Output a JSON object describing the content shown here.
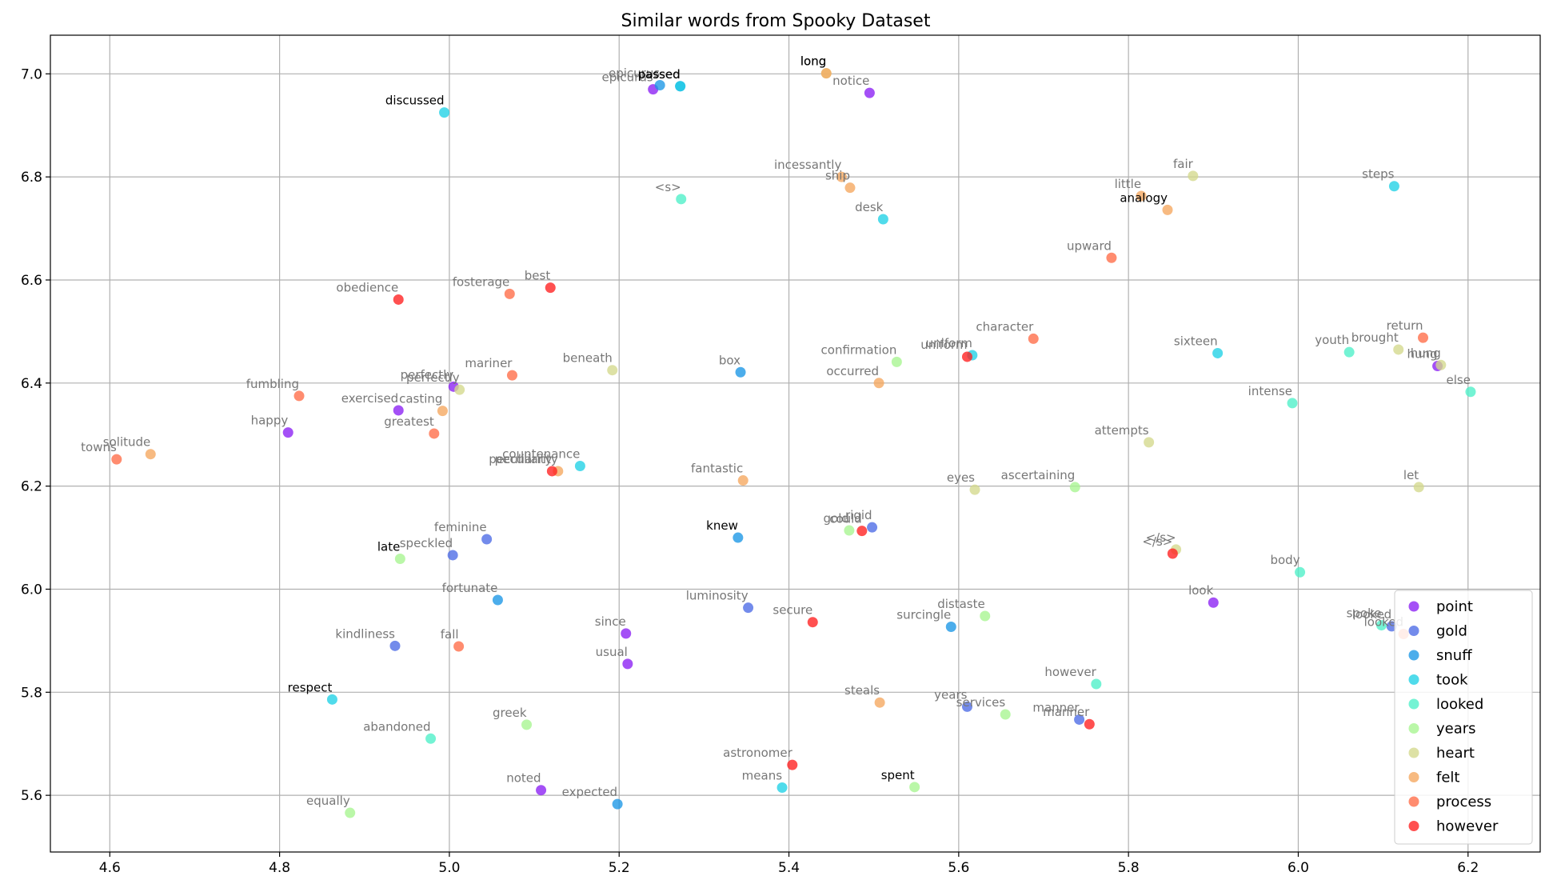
{
  "chart_data": {
    "type": "scatter",
    "title": "Similar words from Spooky Dataset",
    "xlabel": "",
    "ylabel": "",
    "xlim": [
      4.53,
      6.285
    ],
    "ylim": [
      5.49,
      7.075
    ],
    "x_ticks": [
      "4.6",
      "4.8",
      "5.0",
      "5.2",
      "5.4",
      "5.6",
      "5.8",
      "6.0",
      "6.2"
    ],
    "y_ticks": [
      "5.6",
      "5.8",
      "6.0",
      "6.2",
      "6.4",
      "6.6",
      "6.8",
      "7.0"
    ],
    "grid": true,
    "legend_position": "lower right",
    "series": [
      {
        "name": "point",
        "color": "#8b1ff3",
        "points": [
          {
            "label": "epicurus",
            "x": 5.24,
            "y": 6.97,
            "label_color": "#777777"
          },
          {
            "label": "notice",
            "x": 5.495,
            "y": 6.963,
            "label_color": "#777777"
          },
          {
            "label": "perfectly",
            "x": 5.005,
            "y": 6.393,
            "label_color": "#777777"
          },
          {
            "label": "exercised",
            "x": 4.94,
            "y": 6.347,
            "label_color": "#777777"
          },
          {
            "label": "happy",
            "x": 4.81,
            "y": 6.304,
            "label_color": "#777777"
          },
          {
            "label": "since",
            "x": 5.208,
            "y": 5.914,
            "label_color": "#777777"
          },
          {
            "label": "usual",
            "x": 5.21,
            "y": 5.855,
            "label_color": "#777777"
          },
          {
            "label": "noted",
            "x": 5.108,
            "y": 5.61,
            "label_color": "#777777"
          },
          {
            "label": "look",
            "x": 5.9,
            "y": 5.974,
            "label_color": "#777777"
          },
          {
            "label": "hung",
            "x": 6.164,
            "y": 6.433,
            "label_color": "#777777"
          }
        ]
      },
      {
        "name": "gold",
        "color": "#4b6ae6",
        "points": [
          {
            "label": "feminine",
            "x": 5.044,
            "y": 6.097,
            "label_color": "#777777"
          },
          {
            "label": "speckled",
            "x": 5.004,
            "y": 6.066,
            "label_color": "#777777"
          },
          {
            "label": "kindliness",
            "x": 4.936,
            "y": 5.89,
            "label_color": "#777777"
          },
          {
            "label": "luminosity",
            "x": 5.352,
            "y": 5.964,
            "label_color": "#777777"
          },
          {
            "label": "rigid",
            "x": 5.498,
            "y": 6.12,
            "label_color": "#777777"
          },
          {
            "label": "years",
            "x": 5.61,
            "y": 5.772,
            "label_color": "#777777"
          },
          {
            "label": "manner",
            "x": 5.742,
            "y": 5.747,
            "label_color": "#777777"
          },
          {
            "label": "looked",
            "x": 6.11,
            "y": 5.928,
            "label_color": "#777777"
          }
        ]
      },
      {
        "name": "snuff",
        "color": "#1996e6",
        "points": [
          {
            "label": "epicurus",
            "x": 5.248,
            "y": 6.978,
            "label_color": "#777777"
          },
          {
            "label": "passed",
            "x": 5.272,
            "y": 6.976,
            "label_color": "#000000"
          },
          {
            "label": "box",
            "x": 5.343,
            "y": 6.421,
            "label_color": "#777777"
          },
          {
            "label": "knew",
            "x": 5.34,
            "y": 6.1,
            "label_color": "#000000"
          },
          {
            "label": "fortunate",
            "x": 5.057,
            "y": 5.979,
            "label_color": "#777777"
          },
          {
            "label": "expected",
            "x": 5.198,
            "y": 5.583,
            "label_color": "#777777"
          },
          {
            "label": "surcingle",
            "x": 5.591,
            "y": 5.927,
            "label_color": "#777777"
          }
        ]
      },
      {
        "name": "took",
        "color": "#1fd1e6",
        "points": [
          {
            "label": "discussed",
            "x": 4.994,
            "y": 6.925,
            "label_color": "#000000"
          },
          {
            "label": "passed",
            "x": 5.272,
            "y": 6.976,
            "label_color": "#000000"
          },
          {
            "label": "desk",
            "x": 5.511,
            "y": 6.718,
            "label_color": "#777777"
          },
          {
            "label": "countenance",
            "x": 5.154,
            "y": 6.239,
            "label_color": "#777777"
          },
          {
            "label": "uniform",
            "x": 5.616,
            "y": 6.454,
            "label_color": "#777777"
          },
          {
            "label": "steps",
            "x": 6.113,
            "y": 6.782,
            "label_color": "#777777"
          },
          {
            "label": "sixteen",
            "x": 5.905,
            "y": 6.458,
            "label_color": "#777777"
          },
          {
            "label": "respect",
            "x": 4.862,
            "y": 5.786,
            "label_color": "#000000"
          },
          {
            "label": "means",
            "x": 5.392,
            "y": 5.615,
            "label_color": "#777777"
          }
        ]
      },
      {
        "name": "looked",
        "color": "#4df0c8",
        "points": [
          {
            "label": "<s>",
            "x": 5.273,
            "y": 6.757,
            "label_color": "#777777"
          },
          {
            "label": "youth",
            "x": 6.06,
            "y": 6.46,
            "label_color": "#777777"
          },
          {
            "label": "intense",
            "x": 5.993,
            "y": 6.361,
            "label_color": "#777777"
          },
          {
            "label": "else",
            "x": 6.203,
            "y": 6.383,
            "label_color": "#777777"
          },
          {
            "label": "body",
            "x": 6.002,
            "y": 6.033,
            "label_color": "#777777"
          },
          {
            "label": "abandoned",
            "x": 4.978,
            "y": 5.71,
            "label_color": "#777777"
          },
          {
            "label": "however",
            "x": 5.762,
            "y": 5.816,
            "label_color": "#777777"
          },
          {
            "label": "spoke",
            "x": 6.098,
            "y": 5.93,
            "label_color": "#777777"
          }
        ]
      },
      {
        "name": "years",
        "color": "#a6f590",
        "points": [
          {
            "label": "confirmation",
            "x": 5.527,
            "y": 6.441,
            "label_color": "#777777"
          },
          {
            "label": "late",
            "x": 4.942,
            "y": 6.059,
            "label_color": "#000000"
          },
          {
            "label": "gold",
            "x": 5.471,
            "y": 6.114,
            "label_color": "#777777"
          },
          {
            "label": "ascertaining",
            "x": 5.737,
            "y": 6.198,
            "label_color": "#777777"
          },
          {
            "label": "distaste",
            "x": 5.631,
            "y": 5.948,
            "label_color": "#777777"
          },
          {
            "label": "greek",
            "x": 5.091,
            "y": 5.737,
            "label_color": "#777777"
          },
          {
            "label": "services",
            "x": 5.655,
            "y": 5.757,
            "label_color": "#777777"
          },
          {
            "label": "spent",
            "x": 5.548,
            "y": 5.616,
            "label_color": "#000000"
          },
          {
            "label": "equally",
            "x": 4.883,
            "y": 5.566,
            "label_color": "#777777"
          }
        ]
      },
      {
        "name": "heart",
        "color": "#d3d98c",
        "points": [
          {
            "label": "long",
            "x": 5.444,
            "y": 7.001,
            "label_color": "#000000"
          },
          {
            "label": "fair",
            "x": 5.876,
            "y": 6.802,
            "label_color": "#777777"
          },
          {
            "label": "perfectly",
            "x": 5.012,
            "y": 6.387,
            "label_color": "#777777"
          },
          {
            "label": "beneath",
            "x": 5.192,
            "y": 6.425,
            "label_color": "#777777"
          },
          {
            "label": "brought",
            "x": 6.118,
            "y": 6.465,
            "label_color": "#777777"
          },
          {
            "label": "hung",
            "x": 6.168,
            "y": 6.435,
            "label_color": "#777777"
          },
          {
            "label": "attempts",
            "x": 5.824,
            "y": 6.285,
            "label_color": "#777777"
          },
          {
            "label": "eyes",
            "x": 5.619,
            "y": 6.193,
            "label_color": "#777777"
          },
          {
            "label": "let",
            "x": 6.142,
            "y": 6.198,
            "label_color": "#777777"
          },
          {
            "label": "</s>",
            "x": 5.856,
            "y": 6.077,
            "label_color": "#777777"
          }
        ]
      },
      {
        "name": "felt",
        "color": "#f5a65e",
        "points": [
          {
            "label": "long",
            "x": 5.444,
            "y": 7.001,
            "label_color": "#000000"
          },
          {
            "label": "incessantly",
            "x": 5.462,
            "y": 6.8,
            "label_color": "#777777"
          },
          {
            "label": "ship",
            "x": 5.472,
            "y": 6.779,
            "label_color": "#777777"
          },
          {
            "label": "little",
            "x": 5.815,
            "y": 6.763,
            "label_color": "#777777"
          },
          {
            "label": "analogy",
            "x": 5.846,
            "y": 6.736,
            "label_color": "#000000"
          },
          {
            "label": "occurred",
            "x": 5.506,
            "y": 6.4,
            "label_color": "#777777"
          },
          {
            "label": "casting",
            "x": 4.992,
            "y": 6.346,
            "label_color": "#777777"
          },
          {
            "label": "solitude",
            "x": 4.648,
            "y": 6.262,
            "label_color": "#777777"
          },
          {
            "label": "peculiarity",
            "x": 5.128,
            "y": 6.229,
            "label_color": "#777777"
          },
          {
            "label": "fantastic",
            "x": 5.346,
            "y": 6.211,
            "label_color": "#777777"
          },
          {
            "label": "steals",
            "x": 5.507,
            "y": 5.78,
            "label_color": "#777777"
          }
        ]
      },
      {
        "name": "process",
        "color": "#ff6b47",
        "points": [
          {
            "label": "fosterage",
            "x": 5.071,
            "y": 6.573,
            "label_color": "#777777"
          },
          {
            "label": "mariner",
            "x": 5.074,
            "y": 6.415,
            "label_color": "#777777"
          },
          {
            "label": "fumbling",
            "x": 4.823,
            "y": 6.375,
            "label_color": "#777777"
          },
          {
            "label": "greatest",
            "x": 4.982,
            "y": 6.302,
            "label_color": "#777777"
          },
          {
            "label": "towns",
            "x": 4.608,
            "y": 6.252,
            "label_color": "#777777"
          },
          {
            "label": "upward",
            "x": 5.78,
            "y": 6.643,
            "label_color": "#777777"
          },
          {
            "label": "character",
            "x": 5.688,
            "y": 6.486,
            "label_color": "#777777"
          },
          {
            "label": "return",
            "x": 6.147,
            "y": 6.488,
            "label_color": "#777777"
          },
          {
            "label": "fall",
            "x": 5.011,
            "y": 5.889,
            "label_color": "#777777"
          },
          {
            "label": "looked",
            "x": 6.124,
            "y": 5.913,
            "label_color": "#777777"
          }
        ]
      },
      {
        "name": "however",
        "color": "#ff1f1f",
        "points": [
          {
            "label": "best",
            "x": 5.119,
            "y": 6.585,
            "label_color": "#777777"
          },
          {
            "label": "obedience",
            "x": 4.94,
            "y": 6.562,
            "label_color": "#777777"
          },
          {
            "label": "uniform",
            "x": 5.61,
            "y": 6.451,
            "label_color": "#777777"
          },
          {
            "label": "peculiarity",
            "x": 5.121,
            "y": 6.229,
            "label_color": "#777777"
          },
          {
            "label": "could",
            "x": 5.486,
            "y": 6.113,
            "label_color": "#777777"
          },
          {
            "label": "</s>",
            "x": 5.852,
            "y": 6.069,
            "label_color": "#777777"
          },
          {
            "label": "secure",
            "x": 5.428,
            "y": 5.936,
            "label_color": "#777777"
          },
          {
            "label": "manner",
            "x": 5.754,
            "y": 5.738,
            "label_color": "#777777"
          },
          {
            "label": "astronomer",
            "x": 5.404,
            "y": 5.659,
            "label_color": "#777777"
          }
        ]
      }
    ]
  }
}
